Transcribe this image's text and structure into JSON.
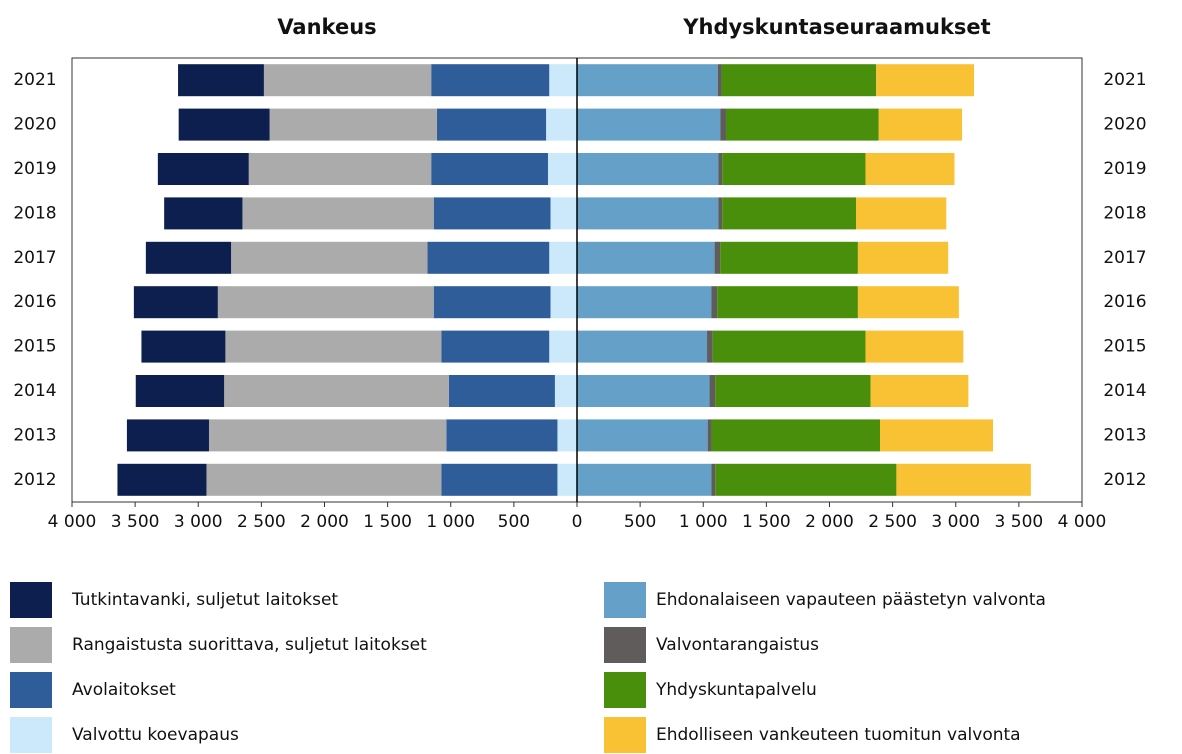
{
  "chart_data": [
    {
      "type": "bar",
      "orientation": "horizontal",
      "stacked": true,
      "title": "Vankeus",
      "categories": [
        "2021",
        "2020",
        "2019",
        "2018",
        "2017",
        "2016",
        "2015",
        "2014",
        "2013",
        "2012"
      ],
      "series": [
        {
          "name": "Valvottu koevapaus",
          "color": "#cbe9fb",
          "values": [
            220,
            245,
            230,
            210,
            220,
            210,
            220,
            175,
            155,
            155
          ]
        },
        {
          "name": "Avolaitokset",
          "color": "#2e5d9a",
          "values": [
            935,
            865,
            925,
            925,
            965,
            925,
            855,
            840,
            880,
            920
          ]
        },
        {
          "name": "Rangaistusta suorittava, suljetut laitokset",
          "color": "#ababab",
          "values": [
            1325,
            1325,
            1445,
            1515,
            1555,
            1710,
            1710,
            1780,
            1880,
            1860
          ]
        },
        {
          "name": "Tutkintavanki, suljetut laitokset",
          "color": "#0d1f4f",
          "values": [
            680,
            720,
            720,
            620,
            675,
            665,
            665,
            700,
            650,
            705
          ]
        }
      ],
      "xlim": [
        4000,
        0
      ],
      "xticks": [
        {
          "value": 4000,
          "label": "4 000"
        },
        {
          "value": 3500,
          "label": "3 500"
        },
        {
          "value": 3000,
          "label": "3 000"
        },
        {
          "value": 2500,
          "label": "2 500"
        },
        {
          "value": 2000,
          "label": "2 000"
        },
        {
          "value": 1500,
          "label": "1 500"
        },
        {
          "value": 1000,
          "label": "1 000"
        },
        500
      ]
    },
    {
      "type": "bar",
      "orientation": "horizontal",
      "stacked": true,
      "title": "Yhdyskuntaseuraamukset",
      "categories": [
        "2021",
        "2020",
        "2019",
        "2018",
        "2017",
        "2016",
        "2015",
        "2014",
        "2013",
        "2012"
      ],
      "series": [
        {
          "name": "Ehdonalaiseen vapauteen päästetyn valvonta",
          "color": "#65a0c8",
          "values": [
            1115,
            1135,
            1120,
            1120,
            1090,
            1065,
            1030,
            1050,
            1035,
            1065
          ]
        },
        {
          "name": "Valvontarangaistus",
          "color": "#5f5c5b",
          "values": [
            30,
            45,
            30,
            30,
            45,
            45,
            45,
            45,
            30,
            30
          ]
        },
        {
          "name": "Yhdyskuntapalvelu",
          "color": "#4a8f0b",
          "values": [
            1225,
            1210,
            1135,
            1060,
            1090,
            1115,
            1210,
            1230,
            1335,
            1435
          ]
        },
        {
          "name": "Ehdolliseen vankeuteen tuomitun valvonta",
          "color": "#f9c234",
          "values": [
            775,
            660,
            705,
            715,
            715,
            800,
            775,
            775,
            895,
            1065
          ]
        }
      ],
      "xlim": [
        0,
        4000
      ],
      "xticks": [
        0,
        500,
        {
          "value": 1000,
          "label": "1 000"
        },
        {
          "value": 1500,
          "label": "1 500"
        },
        {
          "value": 2000,
          "label": "2 000"
        },
        {
          "value": 2500,
          "label": "2 500"
        },
        {
          "value": 3000,
          "label": "3 000"
        },
        {
          "value": 3500,
          "label": "3 500"
        },
        {
          "value": 4000,
          "label": "4 000"
        }
      ]
    }
  ]
}
